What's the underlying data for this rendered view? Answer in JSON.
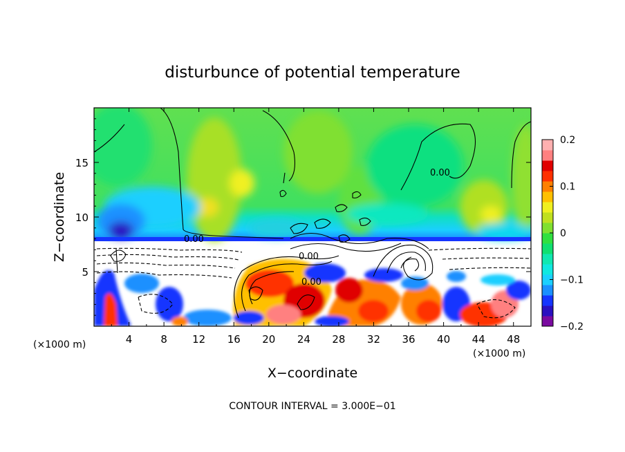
{
  "chart_data": {
    "type": "heatmap",
    "title": "disturbunce of potential temperature",
    "xlabel": "X−coordinate",
    "ylabel": "Z−coordinate",
    "x_units_left": "(×1000 m)",
    "x_units_right": "(×1000 m)",
    "footer": "CONTOUR INTERVAL = 3.000E−01",
    "xlim": [
      0,
      50
    ],
    "ylim": [
      0,
      20
    ],
    "xticks": [
      "4",
      "8",
      "12",
      "16",
      "20",
      "24",
      "28",
      "32",
      "36",
      "40",
      "44",
      "48"
    ],
    "xtick_values": [
      4,
      8,
      12,
      16,
      20,
      24,
      28,
      32,
      36,
      40,
      44,
      48
    ],
    "yticks": [
      "5",
      "10",
      "15"
    ],
    "ytick_values": [
      5,
      10,
      15
    ],
    "colorbar": {
      "range": [
        -0.2,
        0.2
      ],
      "tick_labels": [
        "0.2",
        "0.1",
        "0",
        "−0.1",
        "−0.2"
      ],
      "tick_values": [
        0.2,
        0.1,
        0,
        -0.1,
        -0.2
      ],
      "colors": [
        "#7a0aa0",
        "#2a10c0",
        "#1535ff",
        "#1a90ff",
        "#1ad0ff",
        "#10e8e0",
        "#10e8b0",
        "#10e070",
        "#30e040",
        "#80e030",
        "#c0e020",
        "#f0f020",
        "#ffc000",
        "#ff8000",
        "#ff3000",
        "#e00000",
        "#ff8080",
        "#ffb0b0"
      ]
    },
    "contour_labels": [
      {
        "text": "0.00",
        "x": 11.2,
        "z": 8.0
      },
      {
        "text": "0.00",
        "x": 40.5,
        "z": 14.0
      },
      {
        "text": "0.00",
        "x": 24.7,
        "z": 6.5
      },
      {
        "text": "0.00",
        "x": 24.5,
        "z": 4.3
      }
    ]
  }
}
